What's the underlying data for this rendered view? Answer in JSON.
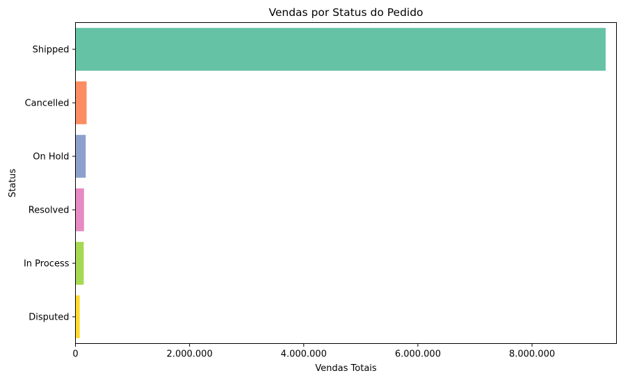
{
  "chart_data": {
    "type": "bar",
    "orientation": "horizontal",
    "title": "Vendas por Status do Pedido",
    "xlabel": "Vendas Totais",
    "ylabel": "Status",
    "categories": [
      "Shipped",
      "Cancelled",
      "On Hold",
      "Resolved",
      "In Process",
      "Disputed"
    ],
    "values": [
      9290000,
      195000,
      180000,
      150000,
      145000,
      75000
    ],
    "colors": [
      "#66c2a5",
      "#fc8d62",
      "#8da0cb",
      "#e78ac3",
      "#a6d854",
      "#ffd92f"
    ],
    "xlim": [
      0,
      9480000
    ],
    "xticks": [
      0,
      2000000,
      4000000,
      6000000,
      8000000
    ],
    "xtick_labels": [
      "0",
      "2.000.000",
      "4.000.000",
      "6.000.000",
      "8.000.000"
    ],
    "grid": false,
    "legend": "none"
  }
}
